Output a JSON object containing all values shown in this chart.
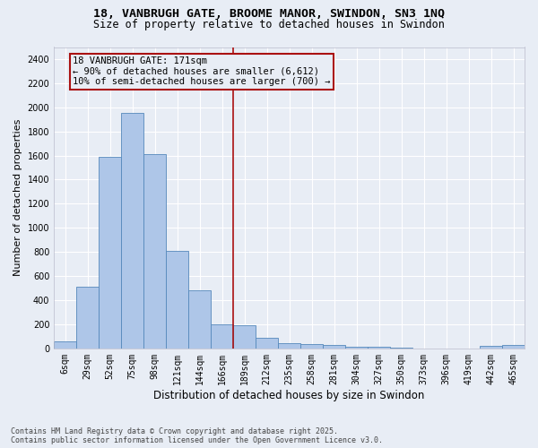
{
  "title_line1": "18, VANBRUGH GATE, BROOME MANOR, SWINDON, SN3 1NQ",
  "title_line2": "Size of property relative to detached houses in Swindon",
  "xlabel": "Distribution of detached houses by size in Swindon",
  "ylabel": "Number of detached properties",
  "categories": [
    "6sqm",
    "29sqm",
    "52sqm",
    "75sqm",
    "98sqm",
    "121sqm",
    "144sqm",
    "166sqm",
    "189sqm",
    "212sqm",
    "235sqm",
    "258sqm",
    "281sqm",
    "304sqm",
    "327sqm",
    "350sqm",
    "373sqm",
    "396sqm",
    "419sqm",
    "442sqm",
    "465sqm"
  ],
  "values": [
    55,
    510,
    1590,
    1950,
    1610,
    810,
    480,
    200,
    195,
    90,
    45,
    35,
    25,
    15,
    10,
    5,
    0,
    0,
    0,
    20,
    30
  ],
  "bar_color": "#aec6e8",
  "bar_edge_color": "#5588bb",
  "background_color": "#e8edf5",
  "grid_color": "#ffffff",
  "vline_color": "#aa1111",
  "annotation_text": "18 VANBRUGH GATE: 171sqm\n← 90% of detached houses are smaller (6,612)\n10% of semi-detached houses are larger (700) →",
  "annotation_box_edgecolor": "#aa1111",
  "ylim": [
    0,
    2500
  ],
  "yticks": [
    0,
    200,
    400,
    600,
    800,
    1000,
    1200,
    1400,
    1600,
    1800,
    2000,
    2200,
    2400
  ],
  "footer_text": "Contains HM Land Registry data © Crown copyright and database right 2025.\nContains public sector information licensed under the Open Government Licence v3.0.",
  "title_fontsize": 9.5,
  "subtitle_fontsize": 8.5,
  "ylabel_fontsize": 8,
  "xlabel_fontsize": 8.5,
  "tick_fontsize": 7,
  "annotation_fontsize": 7.5,
  "footer_fontsize": 6,
  "vline_x_index": 7.5
}
